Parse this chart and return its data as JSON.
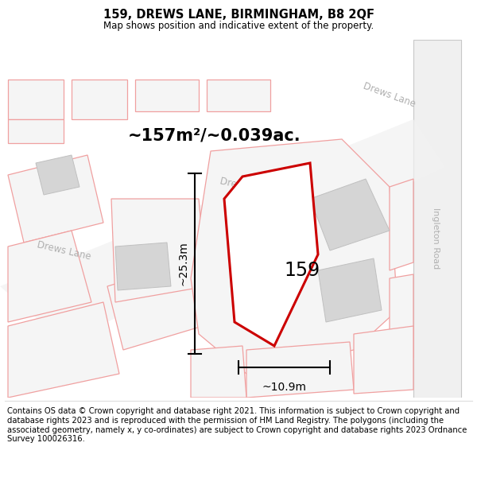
{
  "title": "159, DREWS LANE, BIRMINGHAM, B8 2QF",
  "subtitle": "Map shows position and indicative extent of the property.",
  "footer": "Contains OS data © Crown copyright and database right 2021. This information is subject to Crown copyright and database rights 2023 and is reproduced with the permission of HM Land Registry. The polygons (including the associated geometry, namely x, y co-ordinates) are subject to Crown copyright and database rights 2023 Ordnance Survey 100026316.",
  "area_label": "~157m²/~0.039ac.",
  "property_label": "159",
  "dim_height": "~25.3m",
  "dim_width": "~10.9m",
  "bg_color": "#ffffff",
  "map_bg_color": "#f8f8f8",
  "property_polygon_color": "#cc0000",
  "other_polygon_color": "#f0a0a0",
  "gray_building_color": "#d5d5d5",
  "road_label_color": "#b0b0b0",
  "road_outline_color": "#c8c8c8",
  "title_fontsize": 10.5,
  "subtitle_fontsize": 8.5,
  "footer_fontsize": 7.2,
  "area_label_fontsize": 15,
  "property_label_fontsize": 17,
  "dim_fontsize": 10
}
